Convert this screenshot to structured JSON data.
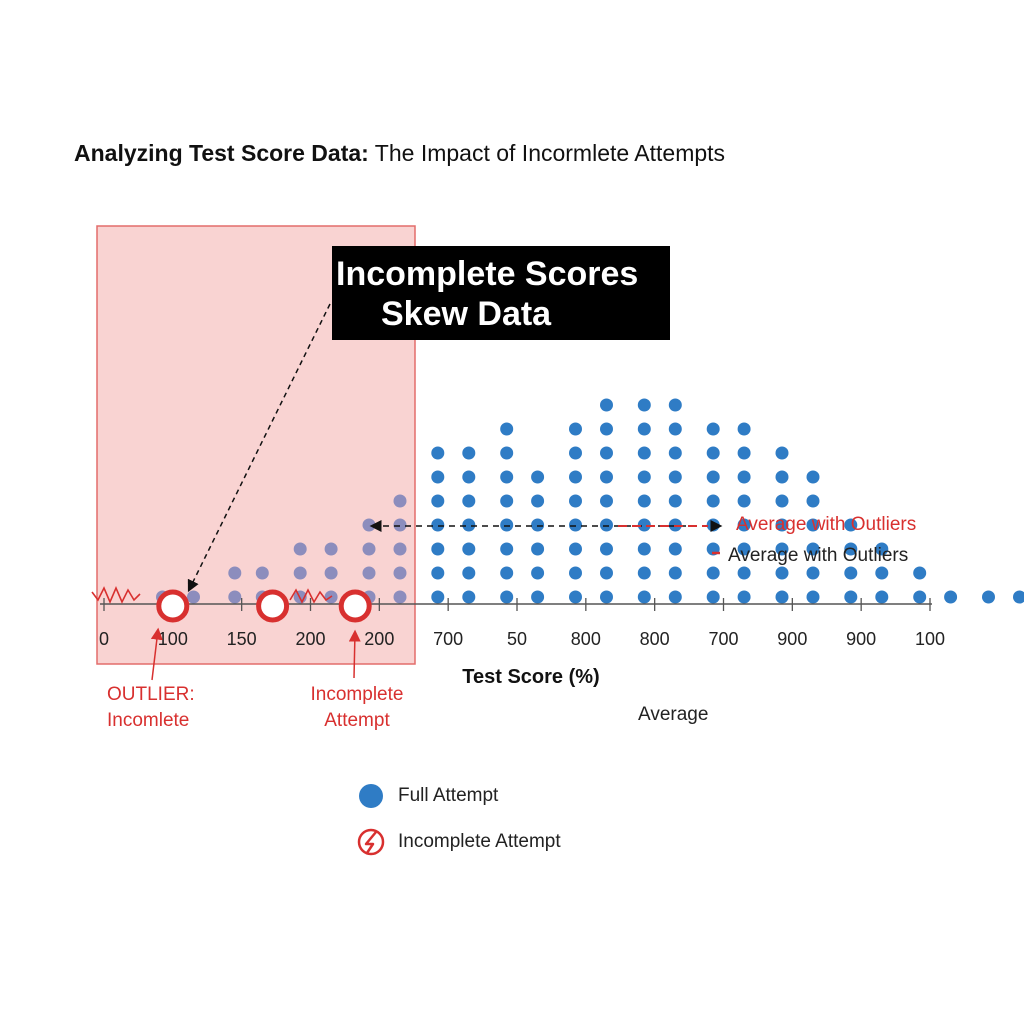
{
  "title_bold": "Analyzing Test Score Data:",
  "title_rest": "The Impact of Incormlete Attempts",
  "callout": {
    "line1": "Incomplete Scores",
    "line2": "Skew Data"
  },
  "annotations": {
    "outlier_line1": "OUTLIER:",
    "outlier_line2": "Incomlete",
    "incomplete_line1": "Incomplete",
    "incomplete_line2": "Attempt",
    "avg_with_outliers_red": "Average with Outliers",
    "avg_with_outliers_black": "Average with Outliers",
    "average": "Average"
  },
  "legend": {
    "full_label": "Full Attempt",
    "incomplete_label": "Incomplete Attempt"
  },
  "colors": {
    "full": "#2f7cc5",
    "incomplete": "#d8302f",
    "highlight": "#f4a8a6",
    "faded": "#8c8dbd"
  },
  "chart_data": {
    "type": "scatter",
    "title": "Analyzing Test Score Data: The Impact of Incormlete Attempts",
    "xlabel": "Test Score (%)",
    "ylabel": "",
    "grid": false,
    "legend_position": "bottom-center",
    "x_tick_labels": [
      "0",
      "100",
      "150",
      "200",
      "200",
      "700",
      "50",
      "800",
      "800",
      "700",
      "900",
      "900",
      "100"
    ],
    "dot_columns": [
      {
        "tick": 0.3,
        "count": 0
      },
      {
        "tick": 0.85,
        "count": 1
      },
      {
        "tick": 1.3,
        "count": 1
      },
      {
        "tick": 1.9,
        "count": 2
      },
      {
        "tick": 2.3,
        "count": 2
      },
      {
        "tick": 2.85,
        "count": 3
      },
      {
        "tick": 3.3,
        "count": 3
      },
      {
        "tick": 3.85,
        "count": 4
      },
      {
        "tick": 4.3,
        "count": 5
      },
      {
        "tick": 4.85,
        "count": 7
      },
      {
        "tick": 5.3,
        "count": 7
      },
      {
        "tick": 5.85,
        "count": 8
      },
      {
        "tick": 6.3,
        "count": 6
      },
      {
        "tick": 6.85,
        "count": 8
      },
      {
        "tick": 7.3,
        "count": 9
      },
      {
        "tick": 7.85,
        "count": 9
      },
      {
        "tick": 8.3,
        "count": 9
      },
      {
        "tick": 8.85,
        "count": 8
      },
      {
        "tick": 9.3,
        "count": 8
      },
      {
        "tick": 9.85,
        "count": 7
      },
      {
        "tick": 10.3,
        "count": 6
      },
      {
        "tick": 10.85,
        "count": 4
      },
      {
        "tick": 11.3,
        "count": 3
      },
      {
        "tick": 11.85,
        "count": 2
      },
      {
        "tick": 12.3,
        "count": 1
      },
      {
        "tick": 12.85,
        "count": 1
      },
      {
        "tick": 13.3,
        "count": 1
      },
      {
        "tick": 13.85,
        "count": 1
      },
      {
        "tick": 14.3,
        "count": 1
      },
      {
        "tick": 14.85,
        "count": 1
      },
      {
        "tick": 15.3,
        "count": 1
      },
      {
        "tick": 15.85,
        "count": 1
      },
      {
        "tick": 16.7,
        "count": 1
      }
    ],
    "incomplete_points": [
      {
        "tick": 1.0,
        "label": "OUTLIER: Incomlete"
      },
      {
        "tick": 2.45,
        "label": ""
      },
      {
        "tick": 3.65,
        "label": "Incomplete Attempt"
      }
    ],
    "series": [
      {
        "name": "Full Attempt"
      },
      {
        "name": "Incomplete Attempt"
      }
    ]
  }
}
